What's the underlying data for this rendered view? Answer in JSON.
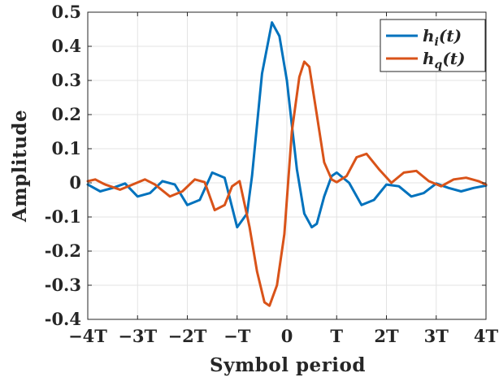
{
  "chart_data": {
    "type": "line",
    "title": "",
    "xlabel": "Symbol period",
    "ylabel": "Amplitude",
    "xlim": [
      -4,
      4
    ],
    "ylim": [
      -0.4,
      0.5
    ],
    "x_ticks": [
      -4,
      -3,
      -2,
      -1,
      0,
      1,
      2,
      3,
      4
    ],
    "x_tick_labels": [
      "−4T",
      "−3T",
      "−2T",
      "−T",
      "0",
      "T",
      "2T",
      "3T",
      "4T"
    ],
    "y_ticks": [
      -0.4,
      -0.3,
      -0.2,
      -0.1,
      0,
      0.1,
      0.2,
      0.3,
      0.4,
      0.5
    ],
    "y_tick_labels": [
      "-0.4",
      "-0.3",
      "-0.2",
      "-0.1",
      "0",
      "0.1",
      "0.2",
      "0.3",
      "0.4",
      "0.5"
    ],
    "grid": true,
    "legend_position": "top-right",
    "series": [
      {
        "name": "h_i(t)",
        "color": "#0072BD",
        "x": [
          -4,
          -3.75,
          -3.5,
          -3.25,
          -3,
          -2.75,
          -2.5,
          -2.25,
          -2,
          -1.75,
          -1.5,
          -1.25,
          -1,
          -0.8,
          -0.7,
          -0.5,
          -0.3,
          -0.15,
          0,
          0.1,
          0.2,
          0.35,
          0.5,
          0.6,
          0.75,
          0.9,
          1,
          1.25,
          1.5,
          1.75,
          2,
          2.25,
          2.5,
          2.75,
          3,
          3.25,
          3.5,
          3.75,
          4
        ],
        "y": [
          -0.005,
          -0.025,
          -0.015,
          -0.002,
          -0.04,
          -0.03,
          0.005,
          -0.005,
          -0.065,
          -0.05,
          0.03,
          0.015,
          -0.13,
          -0.09,
          0.02,
          0.32,
          0.47,
          0.43,
          0.3,
          0.17,
          0.04,
          -0.09,
          -0.13,
          -0.12,
          -0.04,
          0.02,
          0.03,
          0.0,
          -0.065,
          -0.05,
          -0.005,
          -0.01,
          -0.04,
          -0.03,
          -0.002,
          -0.015,
          -0.025,
          -0.015,
          -0.008
        ]
      },
      {
        "name": "h_q(t)",
        "color": "#D95319",
        "x": [
          -4,
          -3.85,
          -3.65,
          -3.35,
          -3.1,
          -2.85,
          -2.65,
          -2.35,
          -2.1,
          -1.85,
          -1.65,
          -1.45,
          -1.25,
          -1.1,
          -0.95,
          -0.75,
          -0.6,
          -0.45,
          -0.35,
          -0.2,
          -0.05,
          0.1,
          0.25,
          0.35,
          0.45,
          0.6,
          0.75,
          0.9,
          1.0,
          1.2,
          1.4,
          1.6,
          1.85,
          2.1,
          2.35,
          2.6,
          2.85,
          3.1,
          3.35,
          3.6,
          3.85,
          4
        ],
        "y": [
          0.005,
          0.01,
          -0.005,
          -0.02,
          -0.005,
          0.01,
          -0.005,
          -0.04,
          -0.025,
          0.01,
          0.002,
          -0.08,
          -0.065,
          -0.01,
          0.005,
          -0.13,
          -0.26,
          -0.35,
          -0.36,
          -0.3,
          -0.15,
          0.15,
          0.31,
          0.355,
          0.34,
          0.2,
          0.06,
          0.01,
          0.002,
          0.02,
          0.075,
          0.085,
          0.04,
          0.0,
          0.03,
          0.035,
          0.005,
          -0.01,
          0.01,
          0.015,
          0.005,
          -0.005
        ]
      }
    ]
  }
}
